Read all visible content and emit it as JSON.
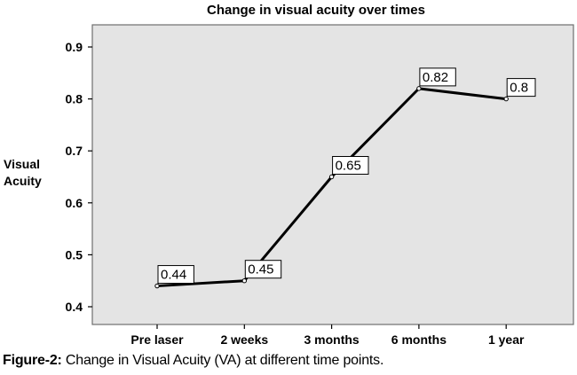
{
  "chart_data": {
    "type": "line",
    "title": "Change in visual acuity over times",
    "ylabel_line1": "Visual",
    "ylabel_line2": "Acuity",
    "xlabel": "",
    "categories": [
      "Pre laser",
      "2 weeks",
      "3 months",
      "6 months",
      "1 year"
    ],
    "values": [
      0.44,
      0.45,
      0.65,
      0.82,
      0.8
    ],
    "data_labels": [
      "0.44",
      "0.45",
      "0.65",
      "0.82",
      "0.8"
    ],
    "ylim": [
      0.4,
      0.9
    ],
    "yticks": [
      "0.4",
      "0.5",
      "0.6",
      "0.7",
      "0.8",
      "0.9"
    ],
    "grid": false,
    "legend": "none",
    "colors": {
      "plot_background": "#e4e4e4",
      "line": "#000000"
    }
  },
  "caption": {
    "label": "Figure-2:",
    "text": "Change in Visual Acuity (VA) at different time points."
  }
}
